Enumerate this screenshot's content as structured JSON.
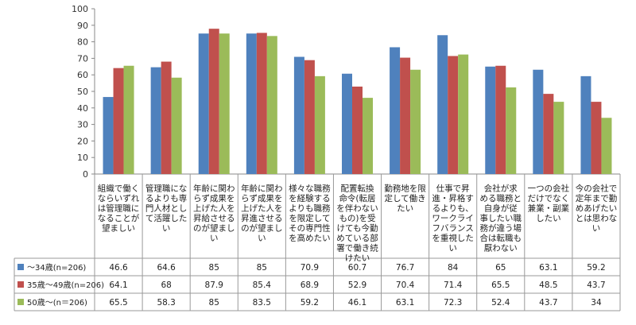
{
  "chart_data": {
    "type": "bar",
    "ylim": [
      0,
      100
    ],
    "yticks": [
      0,
      10,
      20,
      30,
      40,
      50,
      60,
      70,
      80,
      90,
      100
    ],
    "grid": false,
    "legend": "table-left",
    "categories": [
      [
        "組織で働く",
        "ならいずれ",
        "は管理職に",
        "なることが",
        "望ましい"
      ],
      [
        "管理職にな",
        "るよりも専",
        "門人材とし",
        "て活躍した",
        "い"
      ],
      [
        "年齢に関わ",
        "らず成果を",
        "上げた人を",
        "昇給させる",
        "のが望まし",
        "い"
      ],
      [
        "年齢に関わ",
        "らず成果を",
        "上げた人を",
        "昇進させる",
        "のが望まし",
        "い"
      ],
      [
        "様々な職務",
        "を経験する",
        "よりも職務",
        "を限定して",
        "その専門性",
        "を高めたい"
      ],
      [
        "配置転換",
        "命令(転居",
        "を伴わない",
        "もの)を受",
        "けても今勤",
        "めている部",
        "署で働き続",
        "けたい"
      ],
      [
        "勤務地を限",
        "定して働き",
        "たい"
      ],
      [
        "仕事で昇",
        "進・昇格す",
        "るよりも、",
        "ワークライ",
        "フバランス",
        "を重視した",
        "い"
      ],
      [
        "会社が求",
        "める職務と",
        "自身が従",
        "事したい職",
        "務が違う場",
        "合は転職も",
        "厭わない"
      ],
      [
        "一つの会社",
        "だけでなく",
        "兼業・副業",
        "したい"
      ],
      [
        "今の会社で",
        "定年まで勤",
        "めあげたい",
        "とは思わな",
        "い"
      ]
    ],
    "series": [
      {
        "name": "〜34歳(n=206)",
        "color": "#4F81BD",
        "values": [
          46.6,
          64.6,
          85,
          85,
          70.9,
          60.7,
          76.7,
          84,
          65,
          63.1,
          59.2
        ]
      },
      {
        "name": "35歳〜49歳(n=206)",
        "color": "#C0504D",
        "values": [
          64.1,
          68,
          87.9,
          85.4,
          68.9,
          52.9,
          70.4,
          71.4,
          65.5,
          48.5,
          43.7
        ]
      },
      {
        "name": "50歳〜(n＝206)",
        "color": "#9BBB59",
        "values": [
          65.5,
          58.3,
          85,
          83.5,
          59.2,
          46.1,
          63.1,
          72.3,
          52.4,
          43.7,
          34
        ]
      }
    ]
  }
}
